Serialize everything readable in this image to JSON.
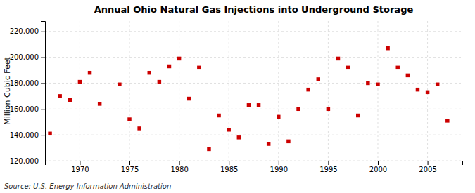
{
  "chart_data": {
    "type": "scatter",
    "title": "Annual Ohio Natural Gas Injections into Underground Storage",
    "ylabel": "Million Cubic Feet",
    "source": "Source: U.S. Energy Information Administration",
    "color": "#cc0000",
    "marker": "square",
    "grid": true,
    "xlim": [
      1966.5,
      2008.5
    ],
    "ylim": [
      120000,
      228000
    ],
    "xticks": [
      1970,
      1975,
      1980,
      1985,
      1990,
      1995,
      2000,
      2005
    ],
    "yticks": [
      {
        "value": 120000,
        "label": "120,000"
      },
      {
        "value": 140000,
        "label": "140,000"
      },
      {
        "value": 160000,
        "label": "160,000"
      },
      {
        "value": 180000,
        "label": "180,000"
      },
      {
        "value": 200000,
        "label": "200,000"
      },
      {
        "value": 220000,
        "label": "220,000"
      }
    ],
    "x": [
      1967,
      1968,
      1969,
      1970,
      1971,
      1972,
      1974,
      1975,
      1976,
      1977,
      1978,
      1979,
      1980,
      1981,
      1982,
      1983,
      1984,
      1985,
      1986,
      1987,
      1988,
      1989,
      1990,
      1991,
      1992,
      1993,
      1994,
      1995,
      1996,
      1997,
      1998,
      1999,
      2000,
      2001,
      2002,
      2003,
      2004,
      2005,
      2006,
      2007
    ],
    "values": [
      141000,
      170000,
      167000,
      181000,
      188000,
      164000,
      179000,
      152000,
      145000,
      188000,
      181000,
      193000,
      199000,
      168000,
      192000,
      129000,
      155000,
      144000,
      138000,
      163000,
      163000,
      133000,
      154000,
      135000,
      160000,
      175000,
      183000,
      160000,
      199000,
      192000,
      155000,
      180000,
      179000,
      207000,
      192000,
      186000,
      175000,
      173000,
      179000,
      151000
    ]
  }
}
